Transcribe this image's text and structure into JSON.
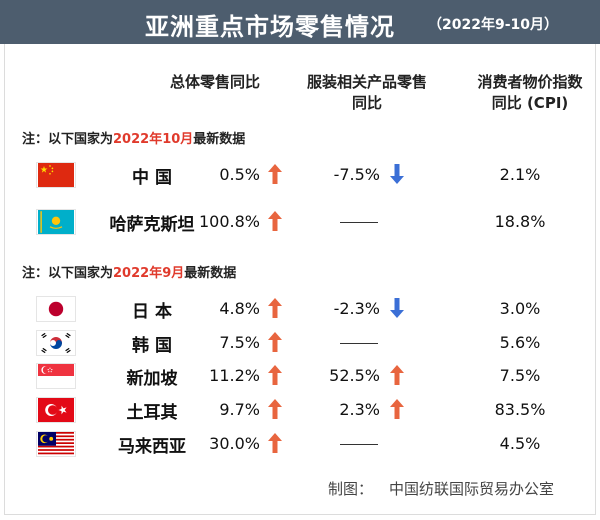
{
  "header": {
    "title": "亚洲重点市场零售情况",
    "subtitle": "（2022年9-10月）",
    "bg_color": "#4d5d6e"
  },
  "columns": {
    "total_retail": "总体零售同比",
    "apparel_retail_line1": "服装相关产品零售",
    "apparel_retail_line2": "同比",
    "cpi_line1": "消费者物价指数",
    "cpi_line2": "同比 (CPI)"
  },
  "sections": [
    {
      "note_prefix": "注：以下国家为",
      "note_highlight": "2022年10月",
      "note_suffix": "最新数据",
      "rows": [
        {
          "country": "中  国",
          "flag": "china-flag",
          "total": "0.5%",
          "total_dir": "up",
          "apparel": "-7.5%",
          "apparel_dir": "down",
          "cpi": "2.1%"
        },
        {
          "country": "哈萨克斯坦",
          "flag": "kazakhstan-flag",
          "total": "100.8%",
          "total_dir": "up",
          "apparel": "——",
          "apparel_dir": "none",
          "cpi": "18.8%"
        }
      ]
    },
    {
      "note_prefix": "注：以下国家为",
      "note_highlight": "2022年9月",
      "note_suffix": "最新数据",
      "rows": [
        {
          "country": "日  本",
          "flag": "japan-flag",
          "total": "4.8%",
          "total_dir": "up",
          "apparel": "-2.3%",
          "apparel_dir": "down",
          "cpi": "3.0%"
        },
        {
          "country": "韩  国",
          "flag": "korea-flag",
          "total": "7.5%",
          "total_dir": "up",
          "apparel": "——",
          "apparel_dir": "none",
          "cpi": "5.6%"
        },
        {
          "country": "新加坡",
          "flag": "singapore-flag",
          "total": "11.2%",
          "total_dir": "up",
          "apparel": "52.5%",
          "apparel_dir": "up",
          "cpi": "7.5%"
        },
        {
          "country": "土耳其",
          "flag": "turkey-flag",
          "total": "9.7%",
          "total_dir": "up",
          "apparel": "2.3%",
          "apparel_dir": "up",
          "cpi": "83.5%"
        },
        {
          "country": "马来西亚",
          "flag": "malaysia-flag",
          "total": "30.0%",
          "total_dir": "up",
          "apparel": "——",
          "apparel_dir": "none",
          "cpi": "4.5%"
        }
      ]
    }
  ],
  "credit": {
    "label": "制图：",
    "source": "中国纺联国际贸易办公室"
  },
  "colors": {
    "up_arrow": "#e8653f",
    "down_arrow": "#3b6fd6",
    "highlight": "#e03a2c"
  }
}
